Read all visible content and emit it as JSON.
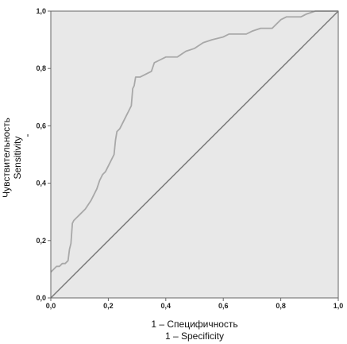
{
  "chart_data": {
    "type": "line",
    "title": "",
    "xlabel": [
      "1 – Специфичность",
      "1 – Specificity"
    ],
    "ylabel": [
      "Чувствительность",
      "Sensitivity"
    ],
    "ylabel_mark": "-",
    "xlim": [
      0,
      1
    ],
    "ylim": [
      0,
      1
    ],
    "xticks": [
      "0,0",
      "0,2",
      "0,4",
      "0,6",
      "0,8",
      "1,0"
    ],
    "yticks": [
      "0,0",
      "0,2",
      "0,4",
      "0,6",
      "0,8",
      "1,0"
    ],
    "grid": false,
    "colors": {
      "plot_background": "#e8e8e8",
      "roc_line": "#a8a8a8",
      "reference_line": "#7a7a7a",
      "frame": "#666666"
    },
    "series": [
      {
        "values": [
          [
            0.0,
            0.09
          ],
          [
            0.01,
            0.1
          ],
          [
            0.02,
            0.11
          ],
          [
            0.03,
            0.11
          ],
          [
            0.04,
            0.12
          ],
          [
            0.05,
            0.12
          ],
          [
            0.06,
            0.13
          ],
          [
            0.065,
            0.17
          ],
          [
            0.07,
            0.19
          ],
          [
            0.075,
            0.26
          ],
          [
            0.08,
            0.27
          ],
          [
            0.09,
            0.28
          ],
          [
            0.1,
            0.29
          ],
          [
            0.12,
            0.31
          ],
          [
            0.14,
            0.34
          ],
          [
            0.16,
            0.38
          ],
          [
            0.17,
            0.41
          ],
          [
            0.18,
            0.43
          ],
          [
            0.19,
            0.44
          ],
          [
            0.2,
            0.46
          ],
          [
            0.21,
            0.48
          ],
          [
            0.22,
            0.5
          ],
          [
            0.225,
            0.55
          ],
          [
            0.23,
            0.58
          ],
          [
            0.24,
            0.59
          ],
          [
            0.25,
            0.61
          ],
          [
            0.26,
            0.63
          ],
          [
            0.27,
            0.65
          ],
          [
            0.28,
            0.67
          ],
          [
            0.285,
            0.73
          ],
          [
            0.29,
            0.74
          ],
          [
            0.295,
            0.77
          ],
          [
            0.31,
            0.77
          ],
          [
            0.33,
            0.78
          ],
          [
            0.35,
            0.79
          ],
          [
            0.36,
            0.82
          ],
          [
            0.38,
            0.83
          ],
          [
            0.4,
            0.84
          ],
          [
            0.44,
            0.84
          ],
          [
            0.47,
            0.86
          ],
          [
            0.5,
            0.87
          ],
          [
            0.53,
            0.89
          ],
          [
            0.56,
            0.9
          ],
          [
            0.6,
            0.91
          ],
          [
            0.62,
            0.92
          ],
          [
            0.65,
            0.92
          ],
          [
            0.68,
            0.92
          ],
          [
            0.7,
            0.93
          ],
          [
            0.73,
            0.94
          ],
          [
            0.77,
            0.94
          ],
          [
            0.8,
            0.97
          ],
          [
            0.82,
            0.98
          ],
          [
            0.84,
            0.98
          ],
          [
            0.87,
            0.98
          ],
          [
            0.89,
            0.99
          ],
          [
            0.92,
            1.0
          ],
          [
            1.0,
            1.0
          ]
        ]
      },
      {
        "values": [
          [
            0,
            0
          ],
          [
            1,
            1
          ]
        ]
      }
    ]
  }
}
